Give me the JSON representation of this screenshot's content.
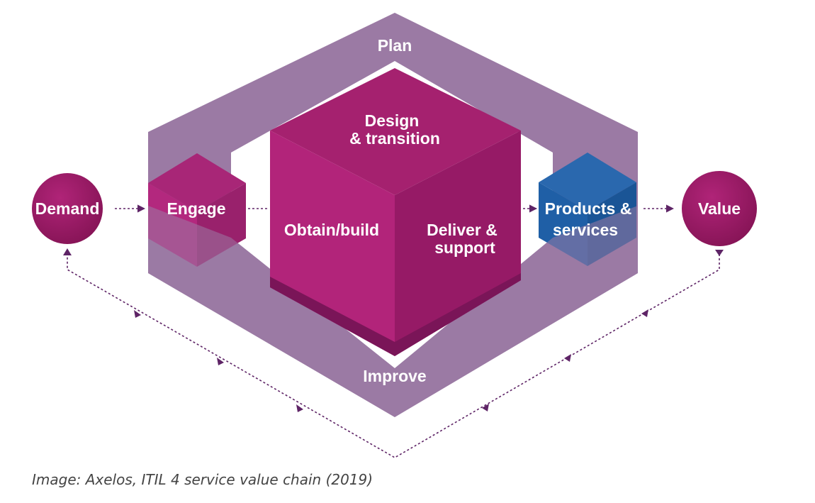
{
  "diagram": {
    "plan": "Plan",
    "improve": "Improve",
    "design_line1": "Design",
    "design_line2": "& transition",
    "obtain": "Obtain/build",
    "deliver_line1": "Deliver &",
    "deliver_line2": "support",
    "engage": "Engage",
    "products_line1": "Products &",
    "products_line2": "services",
    "demand": "Demand",
    "value": "Value"
  },
  "caption": "Image: Axelos, ITIL 4 service value chain (2019)",
  "colors": {
    "ring": "#9b7aa4",
    "magenta_top": "#a5216f",
    "magenta_left": "#b2247a",
    "magenta_right": "#961a66",
    "magenta_bottom": "#7a1558",
    "products_blue": "#1f5fa6",
    "circle": "#9b1a64",
    "connector": "#5e2466"
  }
}
